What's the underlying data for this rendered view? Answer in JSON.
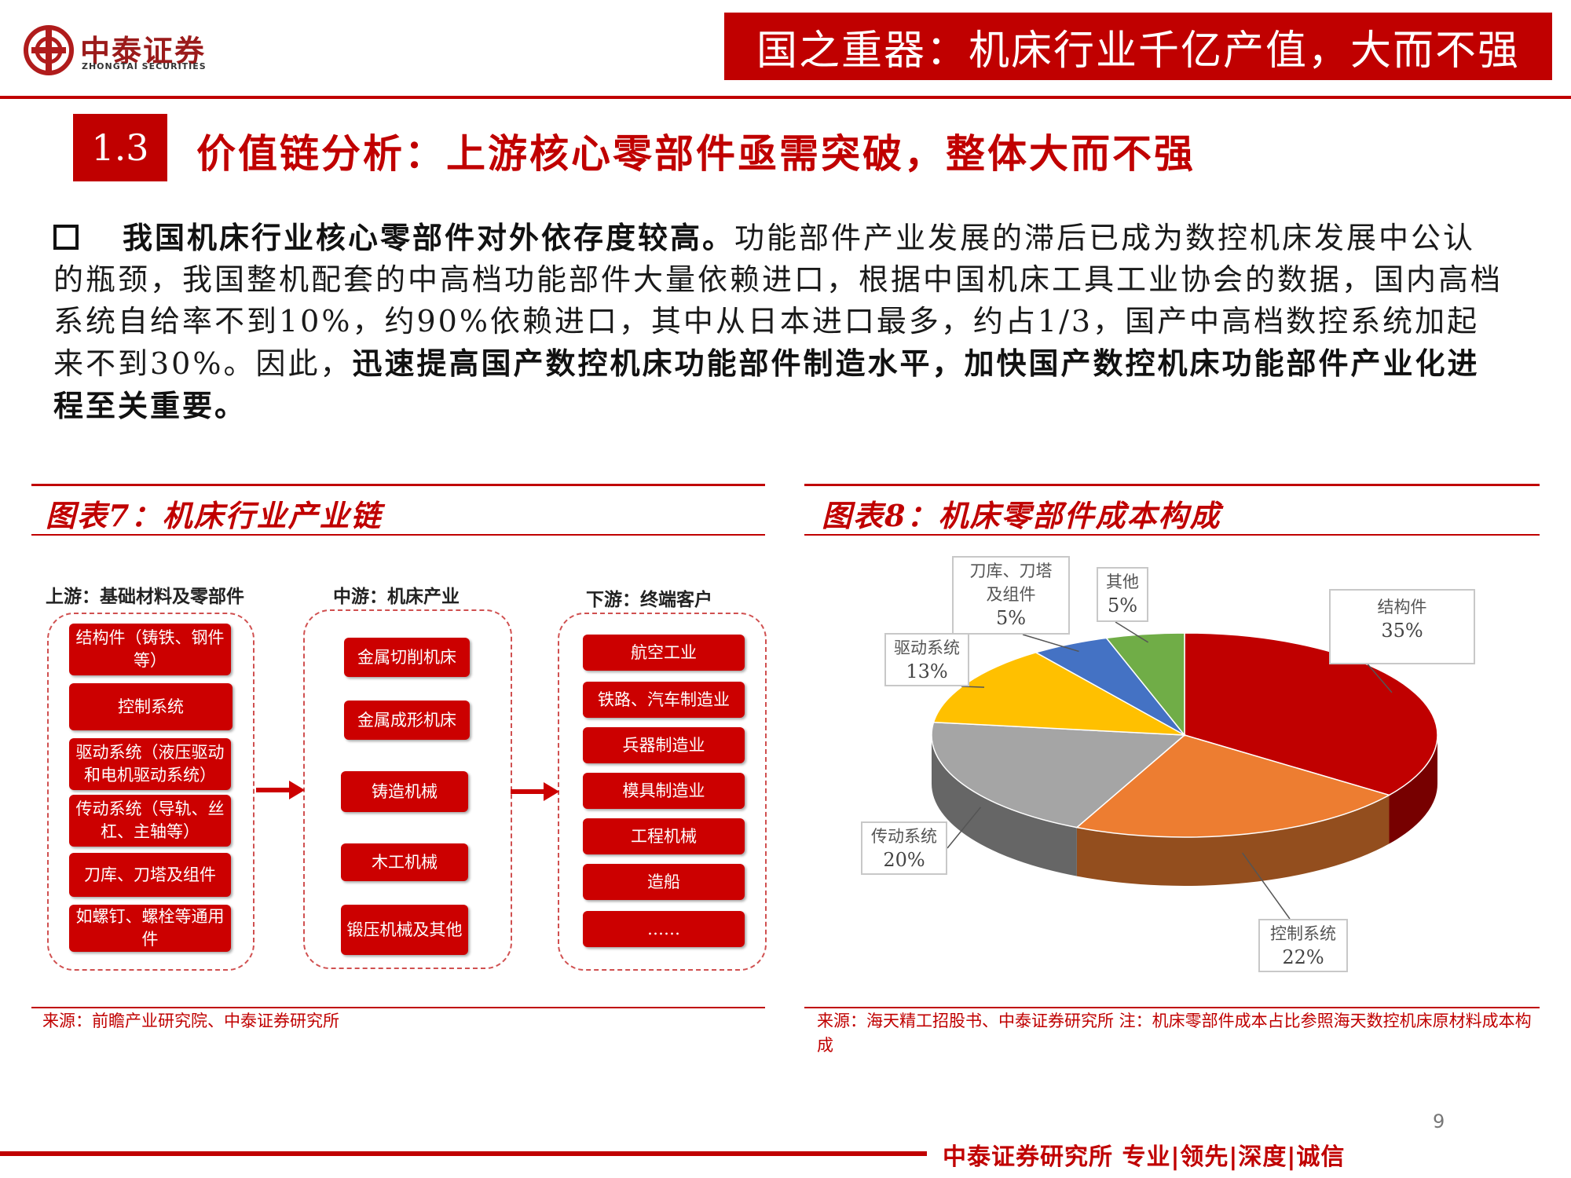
{
  "header": {
    "logo_cn": "中泰证券",
    "logo_en": "ZHONGTAI SECURITIES",
    "banner": "国之重器：机床行业千亿产值，大而不强"
  },
  "section": {
    "number": "1.3",
    "title": "价值链分析：上游核心零部件亟需突破，整体大而不强"
  },
  "paragraph": {
    "lead_bold": "我国机床行业核心零部件对外依存度较高。",
    "body": "功能部件产业发展的滞后已成为数控机床发展中公认的瓶颈，我国整机配套的中高档功能部件大量依赖进口，根据中国机床工具工业协会的数据，国内高档系统自给率不到10%，约90%依赖进口，其中从日本进口最多，约占1/3，国产中高档数控系统加起来不到30%。因此，",
    "tail_bold": "迅速提高国产数控机床功能部件制造水平，加快国产数控机床功能部件产业化进程至关重要。"
  },
  "figure7": {
    "title": "图表7：机床行业产业链",
    "upstream_head": "上游：基础材料及零部件",
    "midstream_head": "中游：机床产业",
    "downstream_head": "下游：终端客户",
    "upstream": [
      "结构件（铸铁、钢件等）",
      "控制系统",
      "驱动系统（液压驱动和电机驱动系统）",
      "传动系统（导轨、丝杠、主轴等）",
      "刀库、刀塔及组件",
      "如螺钉、螺栓等通用件"
    ],
    "midstream": [
      "金属切削机床",
      "金属成形机床",
      "铸造机械",
      "木工机械",
      "锻压机械及其他"
    ],
    "downstream": [
      "航空工业",
      "铁路、汽车制造业",
      "兵器制造业",
      "模具制造业",
      "工程机械",
      "造船",
      "……"
    ],
    "source": "来源：前瞻产业研究院、中泰证券研究所"
  },
  "figure8": {
    "title": "图表8：机床零部件成本构成",
    "source": "来源：海天精工招股书、中泰证券研究所   注：机床零部件成本占比参照海天数控机床原材料成本构成"
  },
  "chart_data": {
    "type": "pie",
    "style": "3d",
    "categories": [
      "结构件",
      "控制系统",
      "传动系统",
      "驱动系统",
      "刀库、刀塔及组件",
      "其他"
    ],
    "values": [
      35,
      22,
      20,
      13,
      5,
      5
    ],
    "value_labels": [
      "35%",
      "22%",
      "20%",
      "13%",
      "5%",
      "5%"
    ],
    "colors": [
      "#c00000",
      "#ed7d31",
      "#a5a5a5",
      "#ffc000",
      "#4472c4",
      "#70ad47"
    ],
    "title": "",
    "legend": "none"
  },
  "footer": {
    "text": "中泰证券研究所 专业|领先|深度|诚信",
    "page": "9"
  }
}
